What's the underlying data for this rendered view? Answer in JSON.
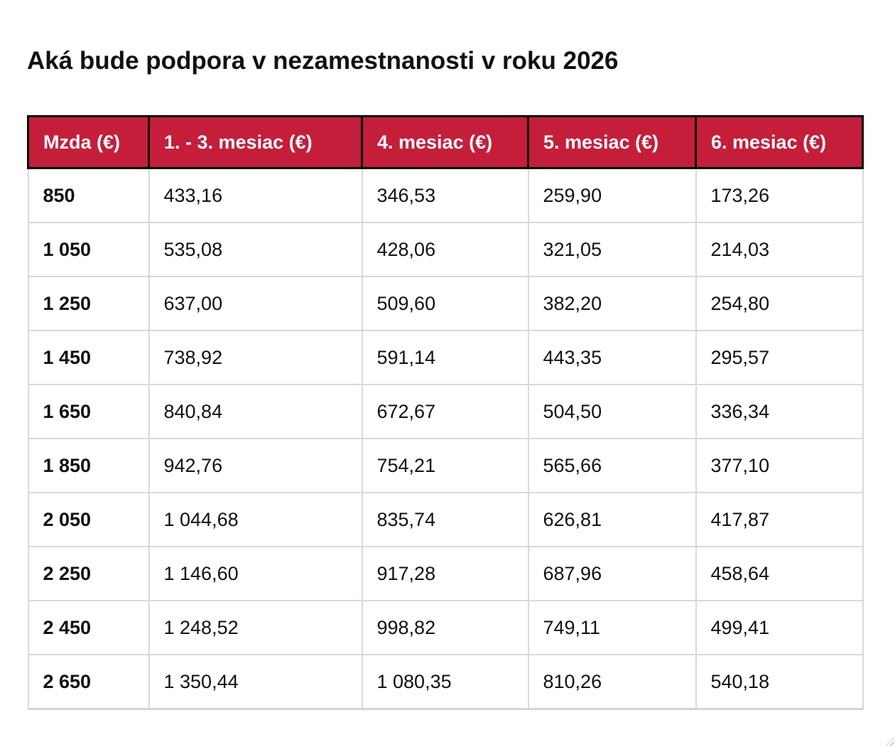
{
  "page": {
    "title": "Aká bude podpora v nezamestnanosti v roku 2026"
  },
  "colors": {
    "header_bg": "#C41E3A",
    "header_text": "#FFFFFF",
    "header_border": "#000000",
    "body_grid": "#D9D9D9",
    "body_text": "#111111",
    "background": "#FFFFFF"
  },
  "icons": {
    "resize_grip": "resize-grip"
  },
  "table": {
    "columns": [
      "Mzda (€)",
      "1. - 3. mesiac (€)",
      "4. mesiac (€)",
      "5. mesiac (€)",
      "6. mesiac (€)"
    ],
    "rows": [
      [
        "850",
        "433,16",
        "346,53",
        "259,90",
        "173,26"
      ],
      [
        "1 050",
        "535,08",
        "428,06",
        "321,05",
        "214,03"
      ],
      [
        "1 250",
        "637,00",
        "509,60",
        "382,20",
        "254,80"
      ],
      [
        "1 450",
        "738,92",
        "591,14",
        "443,35",
        "295,57"
      ],
      [
        "1 650",
        "840,84",
        "672,67",
        "504,50",
        "336,34"
      ],
      [
        "1 850",
        "942,76",
        "754,21",
        "565,66",
        "377,10"
      ],
      [
        "2 050",
        "1 044,68",
        "835,74",
        "626,81",
        "417,87"
      ],
      [
        "2 250",
        "1 146,60",
        "917,28",
        "687,96",
        "458,64"
      ],
      [
        "2 450",
        "1 248,52",
        "998,82",
        "749,11",
        "499,41"
      ],
      [
        "2 650",
        "1 350,44",
        "1 080,35",
        "810,26",
        "540,18"
      ]
    ]
  },
  "chart_data": {
    "type": "table",
    "title": "Aká bude podpora v nezamestnanosti v roku 2026",
    "columns": [
      "Mzda (€)",
      "1. - 3. mesiac (€)",
      "4. mesiac (€)",
      "5. mesiac (€)",
      "6. mesiac (€)"
    ],
    "wages": [
      850,
      1050,
      1250,
      1450,
      1650,
      1850,
      2050,
      2250,
      2450,
      2650
    ],
    "series": [
      {
        "name": "1. - 3. mesiac (€)",
        "values": [
          433.16,
          535.08,
          637.0,
          738.92,
          840.84,
          942.76,
          1044.68,
          1146.6,
          1248.52,
          1350.44
        ]
      },
      {
        "name": "4. mesiac (€)",
        "values": [
          346.53,
          428.06,
          509.6,
          591.14,
          672.67,
          754.21,
          835.74,
          917.28,
          998.82,
          1080.35
        ]
      },
      {
        "name": "5. mesiac (€)",
        "values": [
          259.9,
          321.05,
          382.2,
          443.35,
          504.5,
          565.66,
          626.81,
          687.96,
          749.11,
          810.26
        ]
      },
      {
        "name": "6. mesiac (€)",
        "values": [
          173.26,
          214.03,
          254.8,
          295.57,
          336.34,
          377.1,
          417.87,
          458.64,
          499.41,
          540.18
        ]
      }
    ]
  }
}
